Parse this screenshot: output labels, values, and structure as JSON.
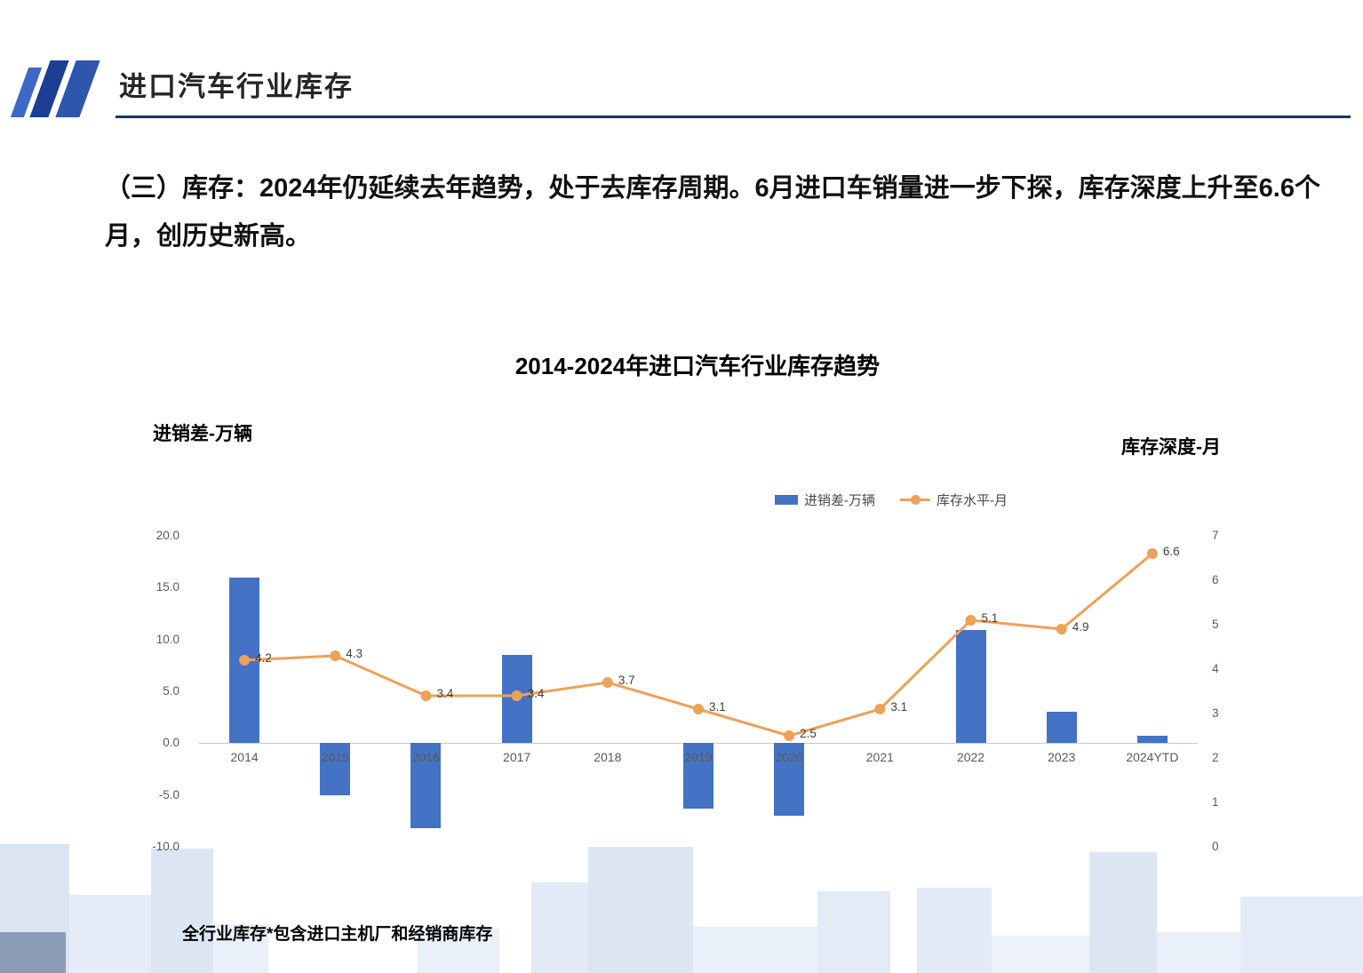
{
  "header": {
    "title": "进口汽车行业库存"
  },
  "headline": "（三）库存：2024年仍延续去年趋势，处于去库存周期。6月进口车销量进一步下探，库存深度上升至6.6个月，创历史新高。",
  "footnote": "全行业库存*包含进口主机厂和经销商库存",
  "colors": {
    "bar": "#4472C4",
    "line": "#EDA159",
    "accent": "#17375e"
  },
  "chart_data": {
    "type": "bar",
    "subtype": "combo bar+line, dual axis",
    "title": "2014-2024年进口汽车行业库存趋势",
    "left_axis_title": "进销差-万辆",
    "right_axis_title": "库存深度-月",
    "legend_position": "top-right",
    "grid": "zero-line only",
    "categories": [
      "2014",
      "2015",
      "2016",
      "2017",
      "2018",
      "2019",
      "2020",
      "2021",
      "2022",
      "2023",
      "2024YTD"
    ],
    "series": [
      {
        "name": "进销差-万辆",
        "type": "bar",
        "axis": "left",
        "values": [
          16.0,
          -5.0,
          -8.2,
          8.5,
          0,
          -6.3,
          -7.0,
          0,
          10.9,
          3.0,
          0.7
        ]
      },
      {
        "name": "库存水平-月",
        "type": "line",
        "axis": "right",
        "values": [
          4.2,
          4.3,
          3.4,
          3.4,
          3.7,
          3.1,
          2.5,
          3.1,
          5.1,
          4.9,
          6.6
        ],
        "point_labels": [
          "4.2",
          "4.3",
          "3.4",
          "3.4",
          "3.7",
          "3.1",
          "2.5",
          "3.1",
          "5.1",
          "4.9",
          "6.6"
        ]
      }
    ],
    "left_axis": {
      "min": -10,
      "max": 20,
      "ticks": [
        "20.0",
        "15.0",
        "10.0",
        "5.0",
        "0.0",
        "-5.0",
        "-10.0"
      ]
    },
    "right_axis": {
      "min": 0,
      "max": 7,
      "ticks": [
        "7",
        "6",
        "5",
        "4",
        "3",
        "2",
        "1",
        "0"
      ]
    }
  }
}
